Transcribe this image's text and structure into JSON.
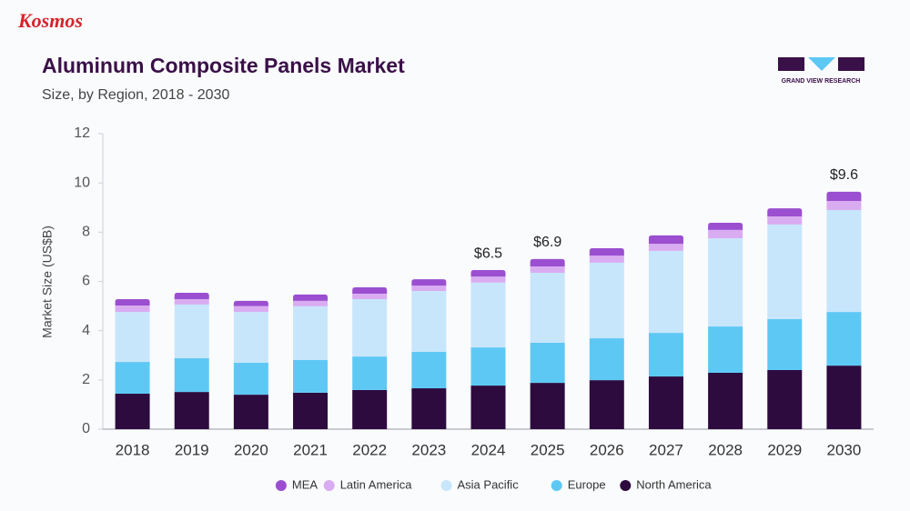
{
  "branding": {
    "publisher": "Kosmos",
    "source": "GRAND VIEW RESEARCH"
  },
  "chart_data": {
    "type": "bar",
    "stacked": true,
    "title": "Aluminum Composite Panels Market",
    "subtitle": "Size, by Region, 2018 - 2030",
    "y_label": "Market Size (US$B)",
    "categories": [
      "2018",
      "2019",
      "2020",
      "2021",
      "2022",
      "2023",
      "2024",
      "2025",
      "2026",
      "2027",
      "2028",
      "2029",
      "2030"
    ],
    "series": [
      {
        "name": "MEA",
        "color": "#9b4fd0",
        "values": [
          0.26,
          0.26,
          0.21,
          0.26,
          0.26,
          0.26,
          0.26,
          0.3,
          0.3,
          0.34,
          0.29,
          0.33,
          0.37
        ]
      },
      {
        "name": "Latin America",
        "color": "#d9acf2",
        "values": [
          0.26,
          0.22,
          0.24,
          0.22,
          0.22,
          0.22,
          0.25,
          0.26,
          0.29,
          0.29,
          0.34,
          0.33,
          0.37
        ]
      },
      {
        "name": "Asia Pacific",
        "color": "#c7e6fb",
        "values": [
          2.03,
          2.18,
          2.06,
          2.18,
          2.33,
          2.47,
          2.63,
          2.84,
          3.07,
          3.33,
          3.58,
          3.84,
          4.14
        ]
      },
      {
        "name": "Europe",
        "color": "#5ec8f5",
        "values": [
          1.29,
          1.37,
          1.3,
          1.33,
          1.36,
          1.48,
          1.55,
          1.63,
          1.7,
          1.77,
          1.88,
          2.07,
          2.18
        ]
      },
      {
        "name": "North America",
        "color": "#2d0b3e",
        "values": [
          1.44,
          1.51,
          1.4,
          1.48,
          1.59,
          1.66,
          1.77,
          1.88,
          1.99,
          2.14,
          2.29,
          2.4,
          2.58
        ]
      }
    ],
    "total_labels": [
      null,
      null,
      null,
      null,
      null,
      null,
      "$6.5",
      "$6.9",
      null,
      null,
      null,
      null,
      "$9.6"
    ],
    "ylim": [
      0,
      12
    ],
    "yticks": [
      0,
      2,
      4,
      6,
      8,
      10,
      12
    ],
    "grid": false,
    "legend": "bottom"
  }
}
